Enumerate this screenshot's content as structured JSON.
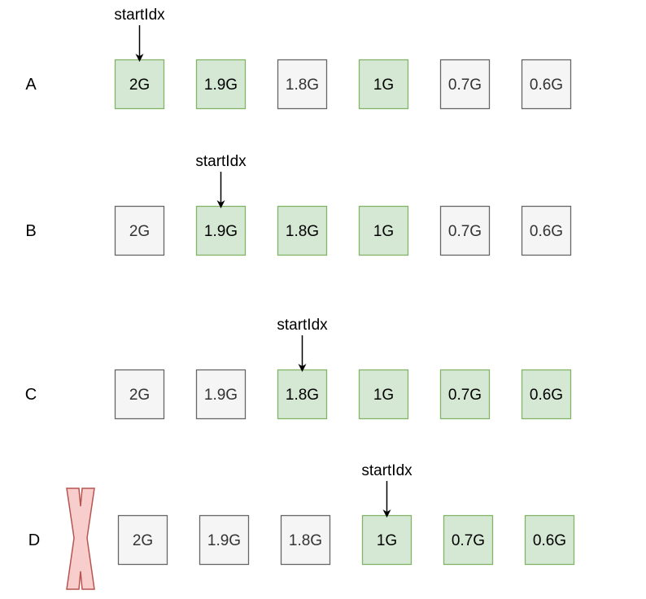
{
  "pointer_label": "startIdx",
  "colors": {
    "highlight_fill": "#d5e8d4",
    "highlight_stroke": "#82b366",
    "default_fill": "#f5f5f5",
    "default_stroke": "#666666",
    "reject_fill": "#f8cecc",
    "reject_stroke": "#b85450",
    "text": "#333333"
  },
  "rows": [
    {
      "label": "A",
      "rejected": false,
      "start_index": 0,
      "cells": [
        {
          "text": "2G",
          "highlighted": true
        },
        {
          "text": "1.9G",
          "highlighted": true
        },
        {
          "text": "1.8G",
          "highlighted": false
        },
        {
          "text": "1G",
          "highlighted": true
        },
        {
          "text": "0.7G",
          "highlighted": false
        },
        {
          "text": "0.6G",
          "highlighted": false
        }
      ]
    },
    {
      "label": "B",
      "rejected": false,
      "start_index": 1,
      "cells": [
        {
          "text": "2G",
          "highlighted": false
        },
        {
          "text": "1.9G",
          "highlighted": true
        },
        {
          "text": "1.8G",
          "highlighted": true
        },
        {
          "text": "1G",
          "highlighted": true
        },
        {
          "text": "0.7G",
          "highlighted": false
        },
        {
          "text": "0.6G",
          "highlighted": false
        }
      ]
    },
    {
      "label": "C",
      "rejected": false,
      "start_index": 2,
      "cells": [
        {
          "text": "2G",
          "highlighted": false
        },
        {
          "text": "1.9G",
          "highlighted": false
        },
        {
          "text": "1.8G",
          "highlighted": true
        },
        {
          "text": "1G",
          "highlighted": true
        },
        {
          "text": "0.7G",
          "highlighted": true
        },
        {
          "text": "0.6G",
          "highlighted": true
        }
      ]
    },
    {
      "label": "D",
      "rejected": true,
      "start_index": 3,
      "cells": [
        {
          "text": "2G",
          "highlighted": false
        },
        {
          "text": "1.9G",
          "highlighted": false
        },
        {
          "text": "1.8G",
          "highlighted": false
        },
        {
          "text": "1G",
          "highlighted": true
        },
        {
          "text": "0.7G",
          "highlighted": true
        },
        {
          "text": "0.6G",
          "highlighted": true
        }
      ]
    }
  ]
}
